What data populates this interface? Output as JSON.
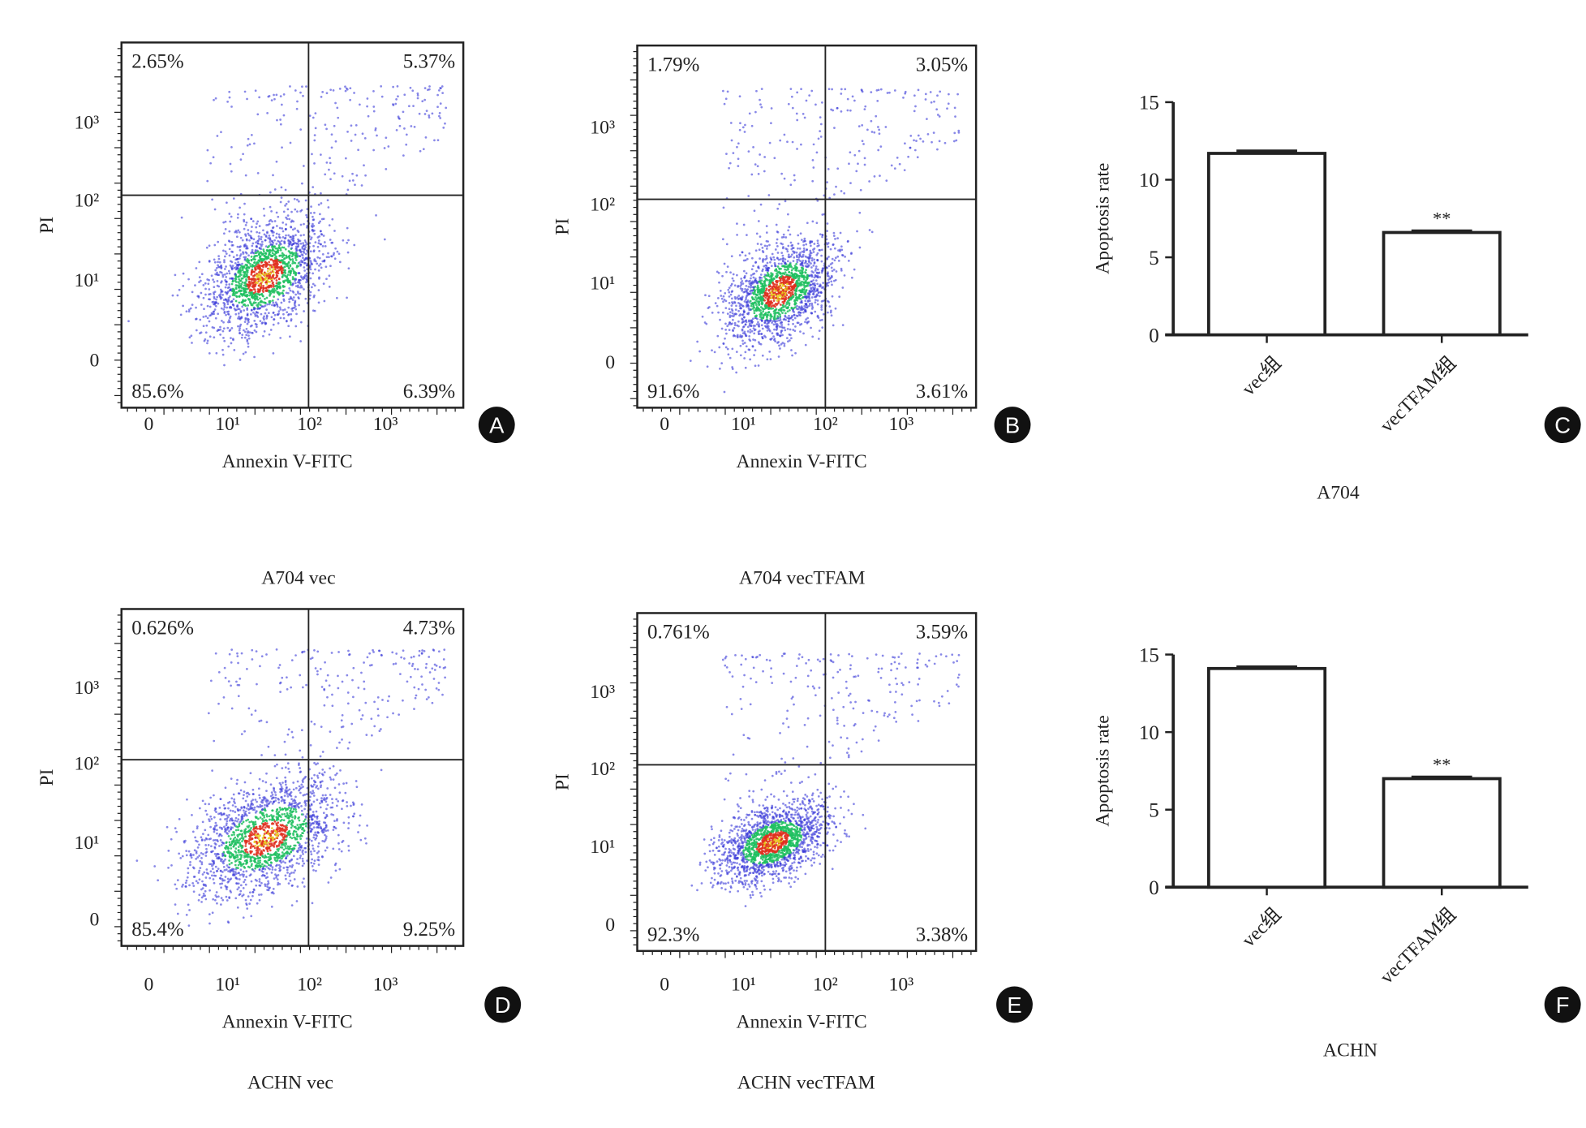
{
  "flow_panels": [
    {
      "badge": "A",
      "caption": "A704 vec",
      "xlabel": "Annexin V-FITC",
      "ylabel": "PI",
      "xticks": [
        "0",
        "10¹",
        "10²",
        "10³"
      ],
      "yticks": [
        "10³",
        "10²",
        "10¹",
        "0"
      ],
      "quadrants": {
        "UL": "2.65%",
        "UR": "5.37%",
        "LL": "85.6%",
        "LR": "6.39%"
      }
    },
    {
      "badge": "B",
      "caption": "A704 vecTFAM",
      "xlabel": "Annexin V-FITC",
      "ylabel": "PI",
      "xticks": [
        "0",
        "10¹",
        "10²",
        "10³"
      ],
      "yticks": [
        "10³",
        "10²",
        "10¹",
        "0"
      ],
      "quadrants": {
        "UL": "1.79%",
        "UR": "3.05%",
        "LL": "91.6%",
        "LR": "3.61%"
      }
    },
    {
      "badge": "D",
      "caption": "ACHN vec",
      "xlabel": "Annexin V-FITC",
      "ylabel": "PI",
      "xticks": [
        "0",
        "10¹",
        "10²",
        "10³"
      ],
      "yticks": [
        "10³",
        "10²",
        "10¹",
        "0"
      ],
      "quadrants": {
        "UL": "0.626%",
        "UR": "4.73%",
        "LL": "85.4%",
        "LR": "9.25%"
      }
    },
    {
      "badge": "E",
      "caption": "ACHN vecTFAM",
      "xlabel": "Annexin V-FITC",
      "ylabel": "PI",
      "xticks": [
        "0",
        "10¹",
        "10²",
        "10³"
      ],
      "yticks": [
        "10³",
        "10²",
        "10¹",
        "0"
      ],
      "quadrants": {
        "UL": "0.761%",
        "UR": "3.59%",
        "LL": "92.3%",
        "LR": "3.38%"
      }
    }
  ],
  "chart_data": [
    {
      "type": "bar",
      "badge": "C",
      "title": "A704",
      "xlabel": "A704",
      "ylabel": "Apoptosis rate",
      "categories": [
        "vec组",
        "vecTFAM组"
      ],
      "values": [
        11.7,
        6.6
      ],
      "errors": [
        0.15,
        0.1
      ],
      "annotations": [
        "",
        "**"
      ],
      "ylim": [
        0,
        15
      ],
      "yticks": [
        0,
        5,
        10,
        15
      ],
      "grid": false
    },
    {
      "type": "bar",
      "badge": "F",
      "title": "ACHN",
      "xlabel": "ACHN",
      "ylabel": "Apoptosis rate",
      "categories": [
        "vec组",
        "vecTFAM组"
      ],
      "values": [
        14.1,
        7.0
      ],
      "errors": [
        0.1,
        0.1
      ],
      "annotations": [
        "",
        "**"
      ],
      "ylim": [
        0,
        15
      ],
      "yticks": [
        0,
        5,
        10,
        15
      ],
      "grid": false
    }
  ],
  "colors": {
    "axis": "#222222",
    "badge": "#111111",
    "dot_low": "#3a3ad8",
    "dot_mid": "#20c060",
    "dot_high": "#e03020"
  }
}
